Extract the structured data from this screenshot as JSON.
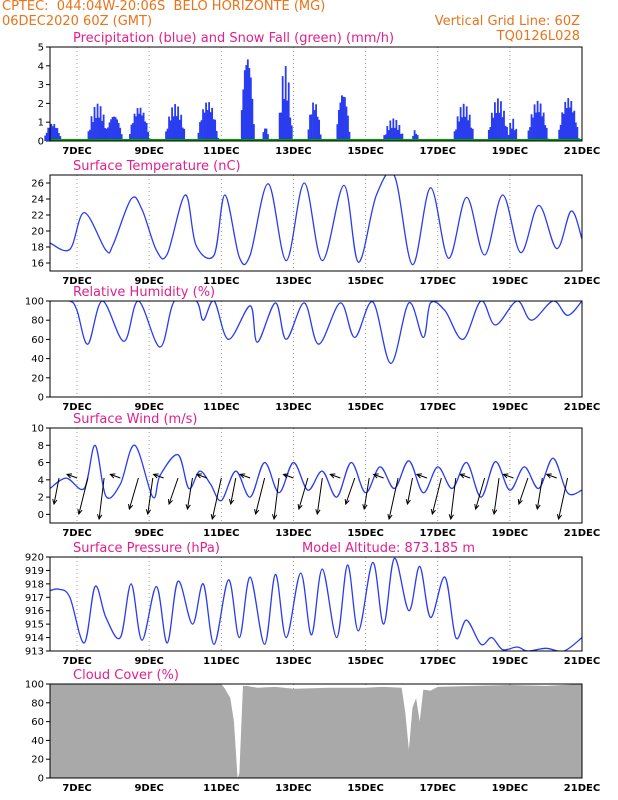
{
  "header": {
    "line1_left": "CPTEC:  044:04W-20:06S  BELO HORIZONTE (MG)",
    "line2_left": "06DEC2020 60Z (GMT)",
    "line2_right": "Vertical Grid Line: 60Z",
    "line3_right": "TQ0126L028"
  },
  "colors": {
    "header": "#e8731a",
    "title": "#e0208c",
    "line": "#2a3cf0",
    "snow": "#00a000",
    "cloud": "#a9a9a9"
  },
  "chart_data": [
    {
      "type": "bar",
      "title": "Precipitation (blue) and Snow Fall (green) (mm/h)",
      "ylim": [
        0,
        5
      ],
      "yticks": [
        0,
        1,
        2,
        3,
        4,
        5
      ],
      "x_range_days": [
        6.25,
        21
      ],
      "xtick_labels": [
        "7DEC",
        "9DEC",
        "11DEC",
        "13DEC",
        "15DEC",
        "17DEC",
        "19DEC",
        "21DEC"
      ],
      "series": [
        {
          "name": "Precipitation",
          "events": [
            {
              "day": 6.3,
              "width": 0.25,
              "peak": 1.0
            },
            {
              "day": 7.55,
              "width": 0.3,
              "peak": 2.0
            },
            {
              "day": 8.0,
              "width": 0.25,
              "peak": 1.5
            },
            {
              "day": 8.7,
              "width": 0.3,
              "peak": 1.9
            },
            {
              "day": 9.7,
              "width": 0.3,
              "peak": 2.0
            },
            {
              "day": 10.6,
              "width": 0.3,
              "peak": 2.2
            },
            {
              "day": 11.7,
              "width": 0.2,
              "peak": 4.9
            },
            {
              "day": 12.2,
              "width": 0.1,
              "peak": 0.8
            },
            {
              "day": 12.75,
              "width": 0.2,
              "peak": 4.0
            },
            {
              "day": 13.55,
              "width": 0.2,
              "peak": 2.2
            },
            {
              "day": 14.35,
              "width": 0.2,
              "peak": 2.8
            },
            {
              "day": 15.75,
              "width": 0.3,
              "peak": 1.2
            },
            {
              "day": 16.35,
              "width": 0.1,
              "peak": 0.6
            },
            {
              "day": 17.7,
              "width": 0.3,
              "peak": 2.0
            },
            {
              "day": 18.65,
              "width": 0.3,
              "peak": 2.3
            },
            {
              "day": 19.05,
              "width": 0.15,
              "peak": 1.2
            },
            {
              "day": 19.75,
              "width": 0.3,
              "peak": 2.2
            },
            {
              "day": 20.6,
              "width": 0.3,
              "peak": 2.4
            }
          ]
        },
        {
          "name": "Snow Fall",
          "constant": 0
        }
      ]
    },
    {
      "type": "line",
      "title": "Surface Temperature (nC)",
      "ylim": [
        15,
        27
      ],
      "yticks": [
        16,
        18,
        20,
        22,
        24,
        26
      ],
      "x_range_days": [
        6.25,
        21
      ],
      "xtick_labels": [
        "7DEC",
        "9DEC",
        "11DEC",
        "13DEC",
        "15DEC",
        "17DEC",
        "19DEC",
        "21DEC"
      ],
      "series": [
        {
          "name": "Temperature",
          "days": [
            6.25,
            6.8,
            7.2,
            7.8,
            8.0,
            8.5,
            8.8,
            9.2,
            9.5,
            10.0,
            10.3,
            10.8,
            11.1,
            11.5,
            11.8,
            12.3,
            12.8,
            13.3,
            13.8,
            14.4,
            14.8,
            15.3,
            15.8,
            16.3,
            16.8,
            17.3,
            17.8,
            18.3,
            18.8,
            19.3,
            19.8,
            20.3,
            20.7,
            21.0
          ],
          "values": [
            18.5,
            17.7,
            22.3,
            17.6,
            18.3,
            24.0,
            22.7,
            17.6,
            17.1,
            24.5,
            18.2,
            17.0,
            24.5,
            16.7,
            17.0,
            25.9,
            16.3,
            26.0,
            16.3,
            25.7,
            16.1,
            24.5,
            26.9,
            15.8,
            25.4,
            16.6,
            24.2,
            17.0,
            24.5,
            17.3,
            23.2,
            17.8,
            22.5,
            19.0
          ]
        }
      ]
    },
    {
      "type": "line",
      "title": "Relative Humidity (%)",
      "ylim": [
        0,
        100
      ],
      "yticks": [
        0,
        20,
        40,
        60,
        80,
        100
      ],
      "x_range_days": [
        6.25,
        21
      ],
      "xtick_labels": [
        "7DEC",
        "9DEC",
        "11DEC",
        "13DEC",
        "15DEC",
        "17DEC",
        "19DEC",
        "21DEC"
      ],
      "series": [
        {
          "name": "Humidity",
          "days": [
            6.25,
            6.8,
            7.0,
            7.3,
            7.7,
            8.3,
            8.7,
            9.3,
            9.7,
            10.3,
            10.5,
            10.8,
            11.2,
            11.8,
            12.0,
            12.5,
            12.8,
            13.3,
            13.7,
            14.3,
            14.7,
            15.2,
            15.7,
            16.2,
            16.6,
            16.8,
            17.2,
            17.7,
            18.2,
            18.6,
            19.2,
            19.6,
            20.2,
            20.6,
            21.0
          ],
          "values": [
            100,
            100,
            90,
            55,
            100,
            58,
            100,
            52,
            100,
            100,
            80,
            100,
            60,
            95,
            57,
            98,
            60,
            98,
            55,
            98,
            62,
            99,
            35,
            98,
            62,
            98,
            90,
            60,
            100,
            75,
            100,
            80,
            100,
            85,
            100
          ]
        }
      ]
    },
    {
      "type": "line",
      "title": "Surface Wind (m/s)",
      "ylim": [
        -1,
        10
      ],
      "yticks": [
        0,
        2,
        4,
        6,
        8,
        10
      ],
      "x_range_days": [
        6.25,
        21
      ],
      "xtick_labels": [
        "7DEC",
        "9DEC",
        "11DEC",
        "13DEC",
        "15DEC",
        "17DEC",
        "19DEC",
        "21DEC"
      ],
      "series": [
        {
          "name": "Wind speed",
          "days": [
            6.25,
            6.7,
            7.2,
            7.5,
            7.8,
            8.2,
            8.6,
            9.1,
            9.3,
            9.8,
            10.1,
            10.4,
            10.7,
            11.0,
            11.4,
            11.8,
            12.2,
            12.6,
            13.0,
            13.4,
            13.8,
            14.2,
            14.6,
            15.0,
            15.4,
            15.8,
            16.2,
            16.6,
            17.0,
            17.4,
            17.8,
            18.2,
            18.6,
            19.0,
            19.4,
            19.8,
            20.2,
            20.6,
            21.0
          ],
          "values": [
            3,
            4.2,
            3,
            8.0,
            2.1,
            3.5,
            8.0,
            2.0,
            4.5,
            6.9,
            3.0,
            5.0,
            3.5,
            1.6,
            5.0,
            2.0,
            6.0,
            2.5,
            6.0,
            2.8,
            5.0,
            2.0,
            6.0,
            2.5,
            5.5,
            3.0,
            6.2,
            2.5,
            5.5,
            3.0,
            6.0,
            2.0,
            6.1,
            2.8,
            5.5,
            3.0,
            6.5,
            2.5,
            2.8
          ]
        }
      ]
    },
    {
      "type": "line",
      "title": "Surface Pressure (hPa)",
      "subtitle": "Model Altitude: 873.185 m",
      "ylim": [
        913,
        920
      ],
      "yticks": [
        913,
        914,
        915,
        916,
        917,
        918,
        919,
        920
      ],
      "x_range_days": [
        6.25,
        21
      ],
      "xtick_labels": [
        "7DEC",
        "9DEC",
        "11DEC",
        "13DEC",
        "15DEC",
        "17DEC",
        "19DEC",
        "21DEC"
      ],
      "series": [
        {
          "name": "Pressure",
          "days": [
            6.25,
            6.5,
            6.8,
            7.2,
            7.5,
            7.8,
            8.2,
            8.5,
            8.8,
            9.2,
            9.5,
            9.8,
            10.2,
            10.5,
            10.8,
            11.2,
            11.5,
            11.8,
            12.2,
            12.5,
            12.8,
            13.2,
            13.5,
            13.8,
            14.2,
            14.5,
            14.8,
            15.2,
            15.5,
            15.8,
            16.2,
            16.5,
            16.8,
            17.2,
            17.5,
            17.8,
            18.2,
            18.5,
            18.8,
            19.2,
            19.5,
            20.0,
            20.5,
            21.0
          ],
          "values": [
            917.5,
            917.6,
            917.0,
            913.6,
            917.8,
            915.5,
            914.0,
            918.0,
            913.8,
            917.8,
            913.6,
            918.2,
            915.0,
            918.0,
            913.5,
            918.3,
            914.0,
            918.5,
            913.5,
            918.7,
            914.0,
            918.8,
            914.2,
            919.1,
            914.0,
            919.4,
            914.5,
            919.6,
            915.0,
            919.9,
            916.0,
            919.3,
            915.5,
            918.5,
            914.0,
            915.3,
            913.5,
            914.0,
            913.1,
            913.3,
            913.0,
            913.2,
            913.0,
            914.0
          ]
        }
      ]
    },
    {
      "type": "area",
      "title": "Cloud Cover (%)",
      "ylim": [
        0,
        100
      ],
      "yticks": [
        0,
        20,
        40,
        60,
        80,
        100
      ],
      "x_range_days": [
        6.25,
        21
      ],
      "xtick_labels": [
        "7DEC",
        "9DEC",
        "11DEC",
        "13DEC",
        "15DEC",
        "17DEC",
        "19DEC",
        "21DEC"
      ],
      "series": [
        {
          "name": "Cloud Cover",
          "days": [
            6.25,
            11.0,
            11.1,
            11.25,
            11.35,
            11.45,
            11.5,
            11.6,
            11.7,
            12.0,
            12.5,
            13.0,
            14.0,
            15.0,
            15.5,
            16.0,
            16.1,
            16.2,
            16.3,
            16.4,
            16.5,
            16.6,
            16.8,
            17.0,
            18.0,
            19.0,
            20.0,
            21.0
          ],
          "values": [
            100,
            100,
            95,
            85,
            60,
            0,
            5,
            98,
            98,
            96,
            97,
            95,
            96,
            96,
            97,
            96,
            70,
            30,
            75,
            85,
            60,
            94,
            93,
            97,
            98,
            99,
            98,
            100
          ]
        }
      ]
    }
  ]
}
